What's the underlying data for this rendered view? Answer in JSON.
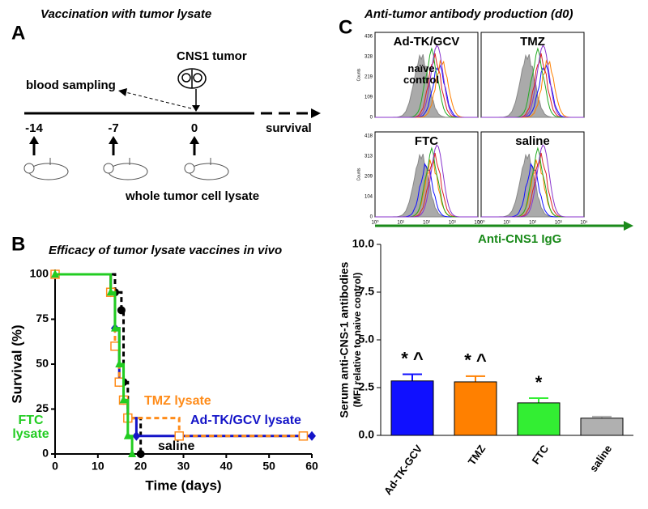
{
  "panel_labels": [
    "A",
    "B",
    "C"
  ],
  "panel_a": {
    "title": "Vaccination with tumor lysate",
    "tumor_label": "CNS1 tumor",
    "blood_label": "blood sampling",
    "timepoints": [
      "-14",
      "-7",
      "0"
    ],
    "end_label": "survival",
    "lysate_label": "whole tumor cell lysate"
  },
  "panel_c_flow": {
    "title": "Anti-tumor antibody production (d0)",
    "panels": [
      "Ad-TK/GCV",
      "TMZ",
      "FTC",
      "saline"
    ],
    "control_label": "naïve control",
    "y_label": "Counts",
    "top_yticks": [
      "436",
      "328",
      "219",
      "109",
      "0"
    ],
    "bottom_yticks": [
      "418",
      "313",
      "209",
      "104",
      "0"
    ],
    "xticks": [
      "10⁰",
      "10¹",
      "10²",
      "10³",
      "10⁴"
    ],
    "x_label": "Anti-CNS1 IgG"
  },
  "chart_data": [
    {
      "type": "line",
      "title": "Efficacy of tumor lysate vaccines in vivo",
      "x_label": "Time (days)",
      "y_label": "Survival (%)",
      "xlim": [
        0,
        60
      ],
      "xticks": [
        0,
        10,
        20,
        30,
        40,
        50,
        60
      ],
      "ylim": [
        0,
        100
      ],
      "yticks": [
        0,
        25,
        50,
        75,
        100
      ],
      "step": true,
      "series": [
        {
          "name": "saline",
          "color": "#000000",
          "dash": true,
          "marker": "circle",
          "x": [
            0,
            14,
            15.5,
            16,
            17,
            20
          ],
          "values": [
            100,
            90,
            80,
            40,
            20,
            0
          ]
        },
        {
          "name": "Ad-TK/GCV lysate",
          "color": "#1414c8",
          "dash": false,
          "marker": "diamond",
          "x": [
            0,
            13,
            14,
            15,
            16,
            17,
            19,
            60
          ],
          "values": [
            100,
            90,
            70,
            40,
            30,
            20,
            10,
            10
          ]
        },
        {
          "name": "TMZ lysate",
          "color": "#ff8c1a",
          "dash": true,
          "marker": "square",
          "x": [
            0,
            13,
            14,
            15,
            16,
            17,
            29,
            58
          ],
          "values": [
            100,
            90,
            60,
            40,
            30,
            20,
            10,
            10
          ]
        },
        {
          "name": "FTC lysate",
          "color": "#22cc22",
          "dash": false,
          "marker": "triangle",
          "x": [
            0,
            13,
            14,
            15,
            16,
            17,
            18
          ],
          "values": [
            100,
            90,
            70,
            50,
            30,
            10,
            0
          ]
        }
      ]
    },
    {
      "type": "bar",
      "y_label": [
        "Serum anti-CNS-1 antibodies",
        "(MFI relative to naive control)"
      ],
      "categories": [
        "Ad-TK-GCV",
        "TMZ",
        "FTC",
        "saline"
      ],
      "values": [
        2.85,
        2.8,
        1.7,
        0.9
      ],
      "errors": [
        0.35,
        0.3,
        0.25,
        0.08
      ],
      "colors": [
        "#1010ff",
        "#ff8000",
        "#33ee33",
        "#b0b0b0"
      ],
      "annotations": [
        "* ^",
        "* ^",
        "*",
        null
      ],
      "ylim": [
        0,
        10
      ],
      "yticks": [
        {
          "value": 0,
          "label": "0.0"
        },
        {
          "value": 2.5,
          "label": "2.5"
        },
        {
          "value": 5,
          "label": "5.0"
        },
        {
          "value": 7.5,
          "label": "7.5"
        },
        {
          "value": 10,
          "label": "10.0"
        }
      ]
    }
  ]
}
